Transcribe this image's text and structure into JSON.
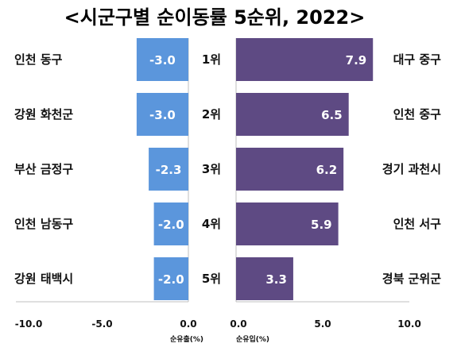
{
  "chart_data": {
    "type": "bar",
    "title": "<시군구별 순이동률 5순위, 2022>",
    "ranks": [
      "1위",
      "2위",
      "3위",
      "4위",
      "5위"
    ],
    "series": [
      {
        "name": "순유출(%)",
        "color": "#5b96dc",
        "regions": [
          "인천 동구",
          "강원 화천군",
          "부산 금정구",
          "인천 남동구",
          "강원 태백시"
        ],
        "values": [
          -3.0,
          -3.0,
          -2.3,
          -2.0,
          -2.0
        ],
        "value_labels": [
          "-3.0",
          "-3.0",
          "-2.3",
          "-2.0",
          "-2.0"
        ],
        "xlim": [
          -10.0,
          0.0
        ],
        "ticks": [
          "-10.0",
          "-5.0",
          "0.0"
        ]
      },
      {
        "name": "순유입(%)",
        "color": "#5e4a83",
        "regions": [
          "대구 중구",
          "인천 중구",
          "경기 과천시",
          "인천 서구",
          "경북 군위군"
        ],
        "values": [
          7.9,
          6.5,
          6.2,
          5.9,
          3.3
        ],
        "value_labels": [
          "7.9",
          "6.5",
          "6.2",
          "5.9",
          "3.3"
        ],
        "xlim": [
          0.0,
          10.0
        ],
        "ticks": [
          "0.0",
          "5.0",
          "10.0"
        ]
      }
    ],
    "grid": false,
    "legend": "none"
  }
}
